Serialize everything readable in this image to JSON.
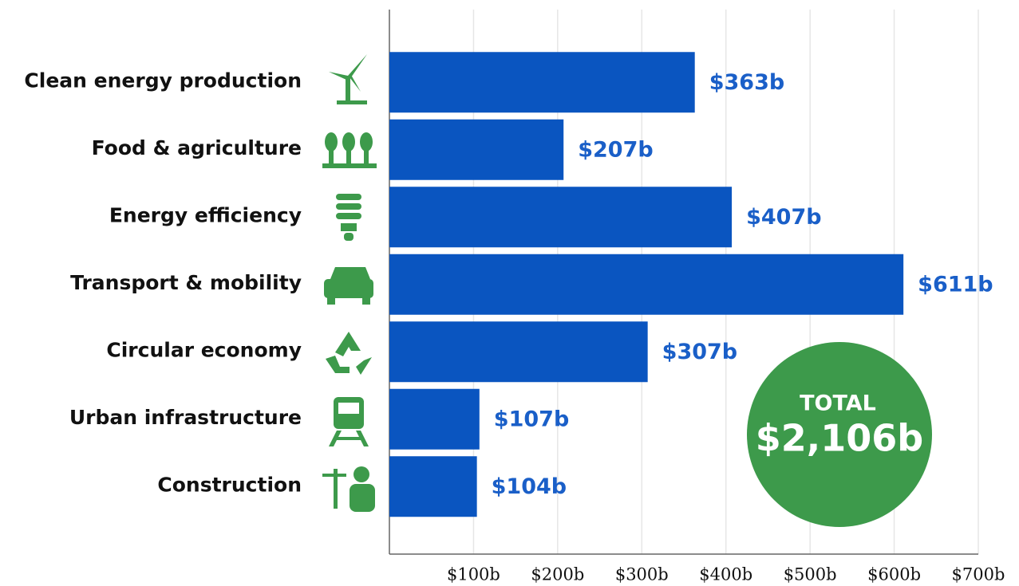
{
  "chart_data": {
    "type": "bar",
    "orientation": "horizontal",
    "categories": [
      "Clean energy production",
      "Food & agriculture",
      "Energy efficiency",
      "Transport & mobility",
      "Circular economy",
      "Urban infrastructure",
      "Construction"
    ],
    "values": [
      363,
      207,
      407,
      611,
      307,
      107,
      104
    ],
    "value_labels": [
      "$363b",
      "$207b",
      "$407b",
      "$611b",
      "$307b",
      "$107b",
      "$104b"
    ],
    "color": "#0a55c0",
    "xlim": [
      0,
      700
    ],
    "xticks": [
      {
        "value": 100,
        "label": "$100b"
      },
      {
        "value": 200,
        "label": "$200b"
      },
      {
        "value": 300,
        "label": "$300b"
      },
      {
        "value": 400,
        "label": "$400b"
      },
      {
        "value": 500,
        "label": "$500b"
      },
      {
        "value": 600,
        "label": "$600b"
      },
      {
        "value": 700,
        "label": "$700b"
      }
    ],
    "grid": true,
    "annotation": {
      "title": "TOTAL",
      "text": "$2,106b",
      "color": "#3d9a4b"
    }
  }
}
